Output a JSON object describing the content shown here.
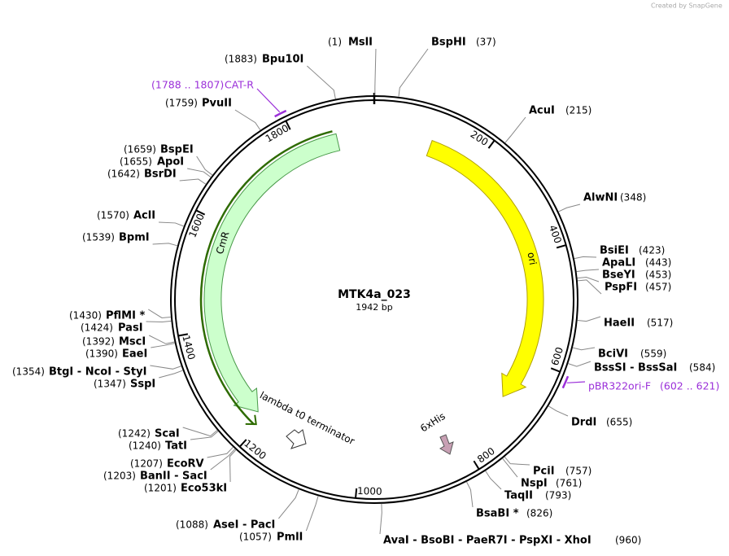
{
  "watermark": "Created by SnapGene",
  "plasmid": {
    "name": "MTK4a_023",
    "length_label": "1942 bp",
    "length": 1942
  },
  "ruler_ticks": [
    200,
    400,
    600,
    800,
    1000,
    1200,
    1400,
    1600,
    1800
  ],
  "sites": [
    {
      "name": "MslI",
      "position": 1,
      "position_label": "(1)"
    },
    {
      "name": "BspHI",
      "position": 37,
      "position_label": "(37)"
    },
    {
      "name": "AcuI",
      "position": 215,
      "position_label": "(215)"
    },
    {
      "name": "AlwNI",
      "position": 348,
      "position_label": "(348)"
    },
    {
      "name": "BsiEI",
      "position": 423,
      "position_label": "(423)"
    },
    {
      "name": "ApaLI",
      "position": 443,
      "position_label": "(443)"
    },
    {
      "name": "BseYI",
      "position": 453,
      "position_label": "(453)"
    },
    {
      "name": "PspFI",
      "position": 457,
      "position_label": "(457)"
    },
    {
      "name": "HaeII",
      "position": 517,
      "position_label": "(517)"
    },
    {
      "name": "BciVI",
      "position": 559,
      "position_label": "(559)"
    },
    {
      "name": "BssSI - BssSaI",
      "position": 584,
      "position_label": "(584)"
    },
    {
      "name": "DrdI",
      "position": 655,
      "position_label": "(655)"
    },
    {
      "name": "PciI",
      "position": 757,
      "position_label": "(757)"
    },
    {
      "name": "NspI",
      "position": 761,
      "position_label": "(761)"
    },
    {
      "name": "TaqII",
      "position": 793,
      "position_label": "(793)"
    },
    {
      "name": "BsaBI *",
      "position": 826,
      "position_label": "(826)"
    },
    {
      "name": "AvaI - BsoBI - PaeR7I - PspXI - XhoI",
      "position": 960,
      "position_label": "(960)"
    },
    {
      "name": "PmlI",
      "position": 1057,
      "position_label": "(1057)"
    },
    {
      "name": "AseI - PacI",
      "position": 1088,
      "position_label": "(1088)"
    },
    {
      "name": "Eco53kI",
      "position": 1201,
      "position_label": "(1201)"
    },
    {
      "name": "BanII - SacI",
      "position": 1203,
      "position_label": "(1203)"
    },
    {
      "name": "EcoRV",
      "position": 1207,
      "position_label": "(1207)"
    },
    {
      "name": "TatI",
      "position": 1240,
      "position_label": "(1240)"
    },
    {
      "name": "ScaI",
      "position": 1242,
      "position_label": "(1242)"
    },
    {
      "name": "SspI",
      "position": 1347,
      "position_label": "(1347)"
    },
    {
      "name": "BtgI - NcoI - StyI",
      "position": 1354,
      "position_label": "(1354)"
    },
    {
      "name": "EaeI",
      "position": 1390,
      "position_label": "(1390)"
    },
    {
      "name": "MscI",
      "position": 1392,
      "position_label": "(1392)"
    },
    {
      "name": "PasI",
      "position": 1424,
      "position_label": "(1424)"
    },
    {
      "name": "PflMI *",
      "position": 1430,
      "position_label": "(1430)"
    },
    {
      "name": "BpmI",
      "position": 1539,
      "position_label": "(1539)"
    },
    {
      "name": "AclI",
      "position": 1570,
      "position_label": "(1570)"
    },
    {
      "name": "BsrDI",
      "position": 1642,
      "position_label": "(1642)"
    },
    {
      "name": "ApoI",
      "position": 1655,
      "position_label": "(1655)"
    },
    {
      "name": "BspEI",
      "position": 1659,
      "position_label": "(1659)"
    },
    {
      "name": "PvuII",
      "position": 1759,
      "position_label": "(1759)"
    },
    {
      "name": "Bpu10I",
      "position": 1883,
      "position_label": "(1883)"
    }
  ],
  "primers": [
    {
      "name": "CAT-R",
      "start": 1788,
      "end": 1807,
      "range_label": "(1788 .. 1807)"
    },
    {
      "name": "pBR322ori-F",
      "start": 602,
      "end": 621,
      "range_label": "(602 .. 621)"
    }
  ],
  "features": [
    {
      "name": "CmR"
    },
    {
      "name": "ori"
    },
    {
      "name": "lambda t0 terminator"
    },
    {
      "name": "6xHis"
    }
  ]
}
